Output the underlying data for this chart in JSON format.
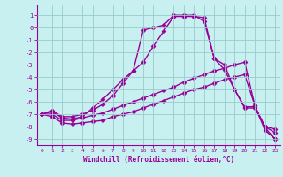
{
  "xlabel": "Windchill (Refroidissement éolien,°C)",
  "background_color": "#c8f0f0",
  "line_color": "#990099",
  "grid_color": "#99cccc",
  "xlim": [
    -0.5,
    23.5
  ],
  "ylim": [
    -9.5,
    1.8
  ],
  "yticks": [
    1,
    0,
    -1,
    -2,
    -3,
    -4,
    -5,
    -6,
    -7,
    -8,
    -9
  ],
  "xticks": [
    0,
    1,
    2,
    3,
    4,
    5,
    6,
    7,
    8,
    9,
    10,
    11,
    12,
    13,
    14,
    15,
    16,
    17,
    18,
    19,
    20,
    21,
    22,
    23
  ],
  "line1_x": [
    0,
    1,
    2,
    3,
    4,
    5,
    6,
    7,
    8,
    9,
    10,
    11,
    12,
    13,
    14,
    15,
    16,
    17,
    18,
    19,
    20,
    21,
    22,
    23
  ],
  "line1_y": [
    -7.0,
    -7.2,
    -7.7,
    -7.8,
    -7.7,
    -7.6,
    -7.5,
    -7.2,
    -7.0,
    -6.8,
    -6.5,
    -6.2,
    -5.9,
    -5.6,
    -5.3,
    -5.0,
    -4.8,
    -4.5,
    -4.2,
    -4.0,
    -3.8,
    -6.3,
    -8.3,
    -9.0
  ],
  "line2_x": [
    0,
    1,
    2,
    3,
    4,
    5,
    6,
    7,
    8,
    9,
    10,
    11,
    12,
    13,
    14,
    15,
    16,
    17,
    18,
    19,
    20,
    21,
    22,
    23
  ],
  "line2_y": [
    -7.0,
    -7.0,
    -7.5,
    -7.5,
    -7.3,
    -7.1,
    -6.9,
    -6.6,
    -6.3,
    -6.0,
    -5.7,
    -5.4,
    -5.1,
    -4.8,
    -4.4,
    -4.1,
    -3.8,
    -3.5,
    -3.3,
    -3.0,
    -2.8,
    -6.3,
    -8.1,
    -9.0
  ],
  "line3_x": [
    0,
    1,
    2,
    3,
    4,
    5,
    6,
    7,
    8,
    9,
    10,
    11,
    12,
    13,
    14,
    15,
    16,
    17,
    18,
    19,
    20,
    21,
    22,
    23
  ],
  "line3_y": [
    -7.0,
    -6.8,
    -7.3,
    -7.4,
    -7.2,
    -6.5,
    -5.8,
    -5.0,
    -4.2,
    -3.5,
    -2.8,
    -1.5,
    -0.3,
    0.9,
    0.9,
    0.9,
    0.8,
    -2.5,
    -3.4,
    -5.0,
    -6.4,
    -6.4,
    -8.0,
    -8.2
  ],
  "line4_x": [
    0,
    1,
    2,
    3,
    4,
    5,
    6,
    7,
    8,
    9,
    10,
    11,
    12,
    13,
    14,
    15,
    16,
    17,
    18,
    19,
    20,
    21,
    22,
    23
  ],
  "line4_y": [
    -7.0,
    -6.7,
    -7.2,
    -7.2,
    -7.0,
    -6.7,
    -6.2,
    -5.5,
    -4.5,
    -3.5,
    -0.2,
    0.0,
    0.2,
    1.0,
    1.0,
    1.0,
    0.5,
    -2.5,
    -3.0,
    -5.0,
    -6.5,
    -6.5,
    -8.0,
    -8.5
  ],
  "marker": "D",
  "marker_size": 2.5,
  "line_width": 1.0
}
